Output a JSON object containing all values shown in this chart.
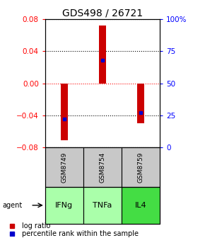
{
  "title": "GDS498 / 26721",
  "samples": [
    "GSM8749",
    "GSM8754",
    "GSM8759"
  ],
  "agents": [
    "IFNg",
    "TNFa",
    "IL4"
  ],
  "log_ratios": [
    -0.071,
    0.072,
    -0.05
  ],
  "percentile_ranks": [
    0.22,
    0.68,
    0.27
  ],
  "ylim": [
    -0.08,
    0.08
  ],
  "yticks_left": [
    -0.08,
    -0.04,
    0,
    0.04,
    0.08
  ],
  "yticks_right_vals": [
    0,
    25,
    50,
    75,
    100
  ],
  "yticks_right_labels": [
    "0",
    "25",
    "50",
    "75",
    "100%"
  ],
  "bar_color": "#cc0000",
  "dot_color": "#0000cc",
  "sample_bg": "#c8c8c8",
  "agent_colors": [
    "#aaffaa",
    "#aaffaa",
    "#44dd44"
  ],
  "bar_width": 0.18,
  "title_fontsize": 10,
  "tick_fontsize": 7.5,
  "legend_fontsize": 7
}
